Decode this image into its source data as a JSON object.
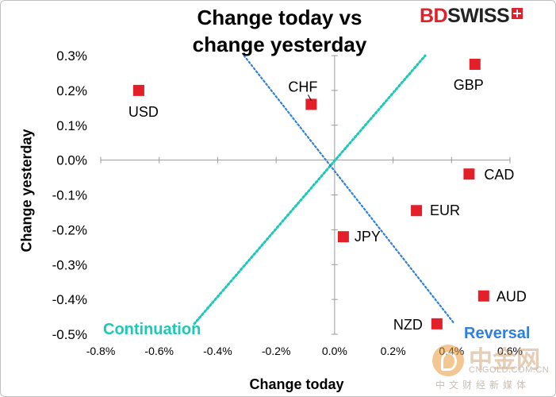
{
  "logo": {
    "brand_red": "BD",
    "brand_dark": "SWISS",
    "icon": "swiss-cross-icon"
  },
  "colors": {
    "marker": "#e3202a",
    "continuation": "#1ac9b8",
    "reversal": "#2f7fe0",
    "axis": "#9a9a9a"
  },
  "watermark": {
    "brand": "中金网",
    "site": "CNGOLD.COM.CN",
    "sub": "中文财经新媒体"
  },
  "chart_data": {
    "type": "scatter",
    "title": "Change today vs change yesterday",
    "title_lines": [
      "Change today vs",
      "change yesterday"
    ],
    "xlabel": "Change today",
    "ylabel": "Change yesterday",
    "xlim": [
      -0.8,
      0.6
    ],
    "ylim": [
      -0.5,
      0.3
    ],
    "x_ticks": [
      -0.8,
      -0.6,
      -0.4,
      -0.2,
      0.0,
      0.2,
      0.4,
      0.6
    ],
    "y_ticks": [
      0.3,
      0.2,
      0.1,
      0.0,
      -0.1,
      -0.2,
      -0.3,
      -0.4,
      -0.5
    ],
    "x_tick_labels": [
      "-0.8%",
      "-0.6%",
      "-0.4%",
      "-0.2%",
      "0.0%",
      "0.2%",
      "0.4%",
      "0.6%"
    ],
    "y_tick_labels": [
      "0.3%",
      "0.2%",
      "0.1%",
      "0.0%",
      "-0.1%",
      "-0.2%",
      "-0.3%",
      "-0.4%",
      "-0.5%"
    ],
    "points": [
      {
        "label": "USD",
        "x": -0.67,
        "y": 0.2
      },
      {
        "label": "CHF",
        "x": -0.08,
        "y": 0.16
      },
      {
        "label": "GBP",
        "x": 0.48,
        "y": 0.275
      },
      {
        "label": "CAD",
        "x": 0.46,
        "y": -0.04
      },
      {
        "label": "EUR",
        "x": 0.28,
        "y": -0.145
      },
      {
        "label": "JPY",
        "x": 0.03,
        "y": -0.22
      },
      {
        "label": "AUD",
        "x": 0.51,
        "y": -0.39
      },
      {
        "label": "NZD",
        "x": 0.35,
        "y": -0.47
      }
    ],
    "guide_lines": [
      {
        "label": "Continuation",
        "from": [
          -0.48,
          -0.47
        ],
        "to": [
          0.31,
          0.3
        ]
      },
      {
        "label": "Reversal",
        "from": [
          -0.31,
          0.3
        ],
        "to": [
          0.41,
          -0.47
        ]
      }
    ]
  }
}
